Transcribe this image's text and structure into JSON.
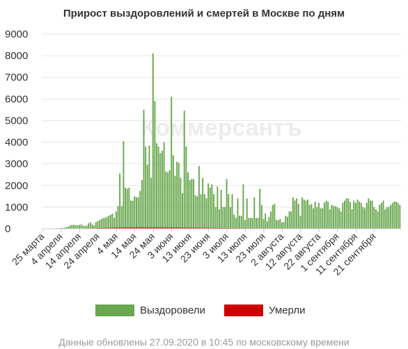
{
  "chart_data": {
    "type": "bar",
    "title": "Прирост выздоровлений и смертей в Москве по дням",
    "start_date": "2020-03-25",
    "ylim": [
      0,
      9000
    ],
    "yticks": [
      0,
      1000,
      2000,
      3000,
      4000,
      5000,
      6000,
      7000,
      8000,
      9000
    ],
    "grid": true,
    "legend_position": "bottom",
    "x_tick_labels": [
      "25 марта",
      "4 апреля",
      "14 апреля",
      "24 апреля",
      "4 мая",
      "14 мая",
      "24 мая",
      "3 июня",
      "13 июня",
      "23 июня",
      "3 июля",
      "13 июля",
      "23 июля",
      "2 августа",
      "12 августа",
      "22 августа",
      "1 сентября",
      "11 сентября",
      "21 сентября"
    ],
    "series": [
      {
        "name": "Выздоровели",
        "color": "#6aa84f",
        "values": [
          0,
          5,
          3,
          10,
          5,
          10,
          15,
          20,
          25,
          20,
          30,
          40,
          50,
          80,
          100,
          150,
          180,
          180,
          170,
          160,
          180,
          200,
          150,
          120,
          150,
          250,
          300,
          200,
          150,
          300,
          350,
          400,
          450,
          500,
          500,
          550,
          600,
          650,
          700,
          500,
          800,
          1050,
          2550,
          1050,
          4050,
          1900,
          1850,
          1900,
          1300,
          1300,
          1500,
          1450,
          1450,
          1750,
          2250,
          5500,
          3800,
          2950,
          3850,
          2350,
          8100,
          5900,
          3950,
          3800,
          3500,
          3600,
          4000,
          2650,
          2600,
          2700,
          6100,
          3400,
          2450,
          3100,
          3050,
          2350,
          1650,
          5450,
          3800,
          2600,
          2250,
          2300,
          2300,
          1550,
          1500,
          2900,
          1600,
          2350,
          1600,
          1400,
          2100,
          1900,
          2050,
          1600,
          1000,
          1950,
          900,
          1800,
          1000,
          1000,
          2300,
          1600,
          1000,
          1600,
          650,
          500,
          1400,
          600,
          600,
          2050,
          400,
          1400,
          500,
          500,
          500,
          1450,
          500,
          500,
          1850,
          1100,
          450,
          700,
          350,
          550,
          800,
          1100,
          1150,
          400,
          400,
          450,
          300,
          300,
          600,
          550,
          800,
          800,
          1450,
          1300,
          1400,
          1150,
          600,
          1450,
          1350,
          1300,
          1350,
          1100,
          1150,
          950,
          1250,
          1000,
          1200,
          950,
          950,
          1200,
          1300,
          1250,
          900,
          1100,
          1050,
          1050,
          1000,
          950,
          800,
          1200,
          1300,
          1400,
          1400,
          1250,
          900,
          1300,
          1200,
          1350,
          1250,
          1200,
          1000,
          950,
          1200,
          1400,
          1300,
          1300,
          1000,
          900,
          800,
          1100,
          1200,
          1300,
          900,
          1000,
          1000,
          1100,
          1200,
          1250,
          1250,
          1200,
          1100
        ]
      },
      {
        "name": "Умерли",
        "color": "#cc0000",
        "values": [
          0,
          0,
          0,
          0,
          0,
          0,
          1,
          1,
          2,
          2,
          3,
          3,
          4,
          5,
          6,
          7,
          8,
          9,
          10,
          11,
          12,
          14,
          16,
          18,
          20,
          22,
          24,
          26,
          28,
          30,
          32,
          35,
          38,
          40,
          42,
          45,
          48,
          50,
          52,
          55,
          57,
          60,
          62,
          65,
          65,
          68,
          70,
          70,
          72,
          72,
          75,
          75,
          74,
          74,
          73,
          72,
          72,
          71,
          70,
          70,
          70,
          70,
          70,
          68,
          68,
          68,
          66,
          66,
          65,
          64,
          63,
          62,
          60,
          60,
          59,
          58,
          57,
          56,
          55,
          54,
          53,
          52,
          51,
          50,
          49,
          48,
          47,
          46,
          45,
          44,
          43,
          42,
          41,
          40,
          39,
          38,
          37,
          36,
          35,
          34,
          33,
          32,
          31,
          30,
          30,
          29,
          28,
          28,
          27,
          26,
          25,
          25,
          24,
          24,
          23,
          23,
          22,
          22,
          21,
          21,
          20,
          20,
          20,
          19,
          19,
          19,
          18,
          18,
          18,
          18,
          17,
          17,
          17,
          17,
          17,
          16,
          16,
          16,
          16,
          16,
          16,
          16,
          15,
          15,
          15,
          15,
          15,
          15,
          15,
          15,
          15,
          15,
          15,
          15,
          15,
          15,
          15,
          15,
          15,
          15,
          15,
          15,
          15,
          15,
          15,
          15,
          15,
          15,
          15,
          15,
          15,
          15,
          15,
          15,
          15,
          15,
          15,
          15,
          15,
          15,
          15,
          15,
          15,
          15,
          15,
          15,
          15
        ]
      }
    ]
  },
  "legend": [
    {
      "label": "Выздоровели",
      "color": "#6aa84f"
    },
    {
      "label": "Умерли",
      "color": "#cc0000"
    }
  ],
  "watermark": "Коммерсантъ",
  "footnote": "Данные обновлены 27.09.2020 в 10:45 по московскому времени"
}
